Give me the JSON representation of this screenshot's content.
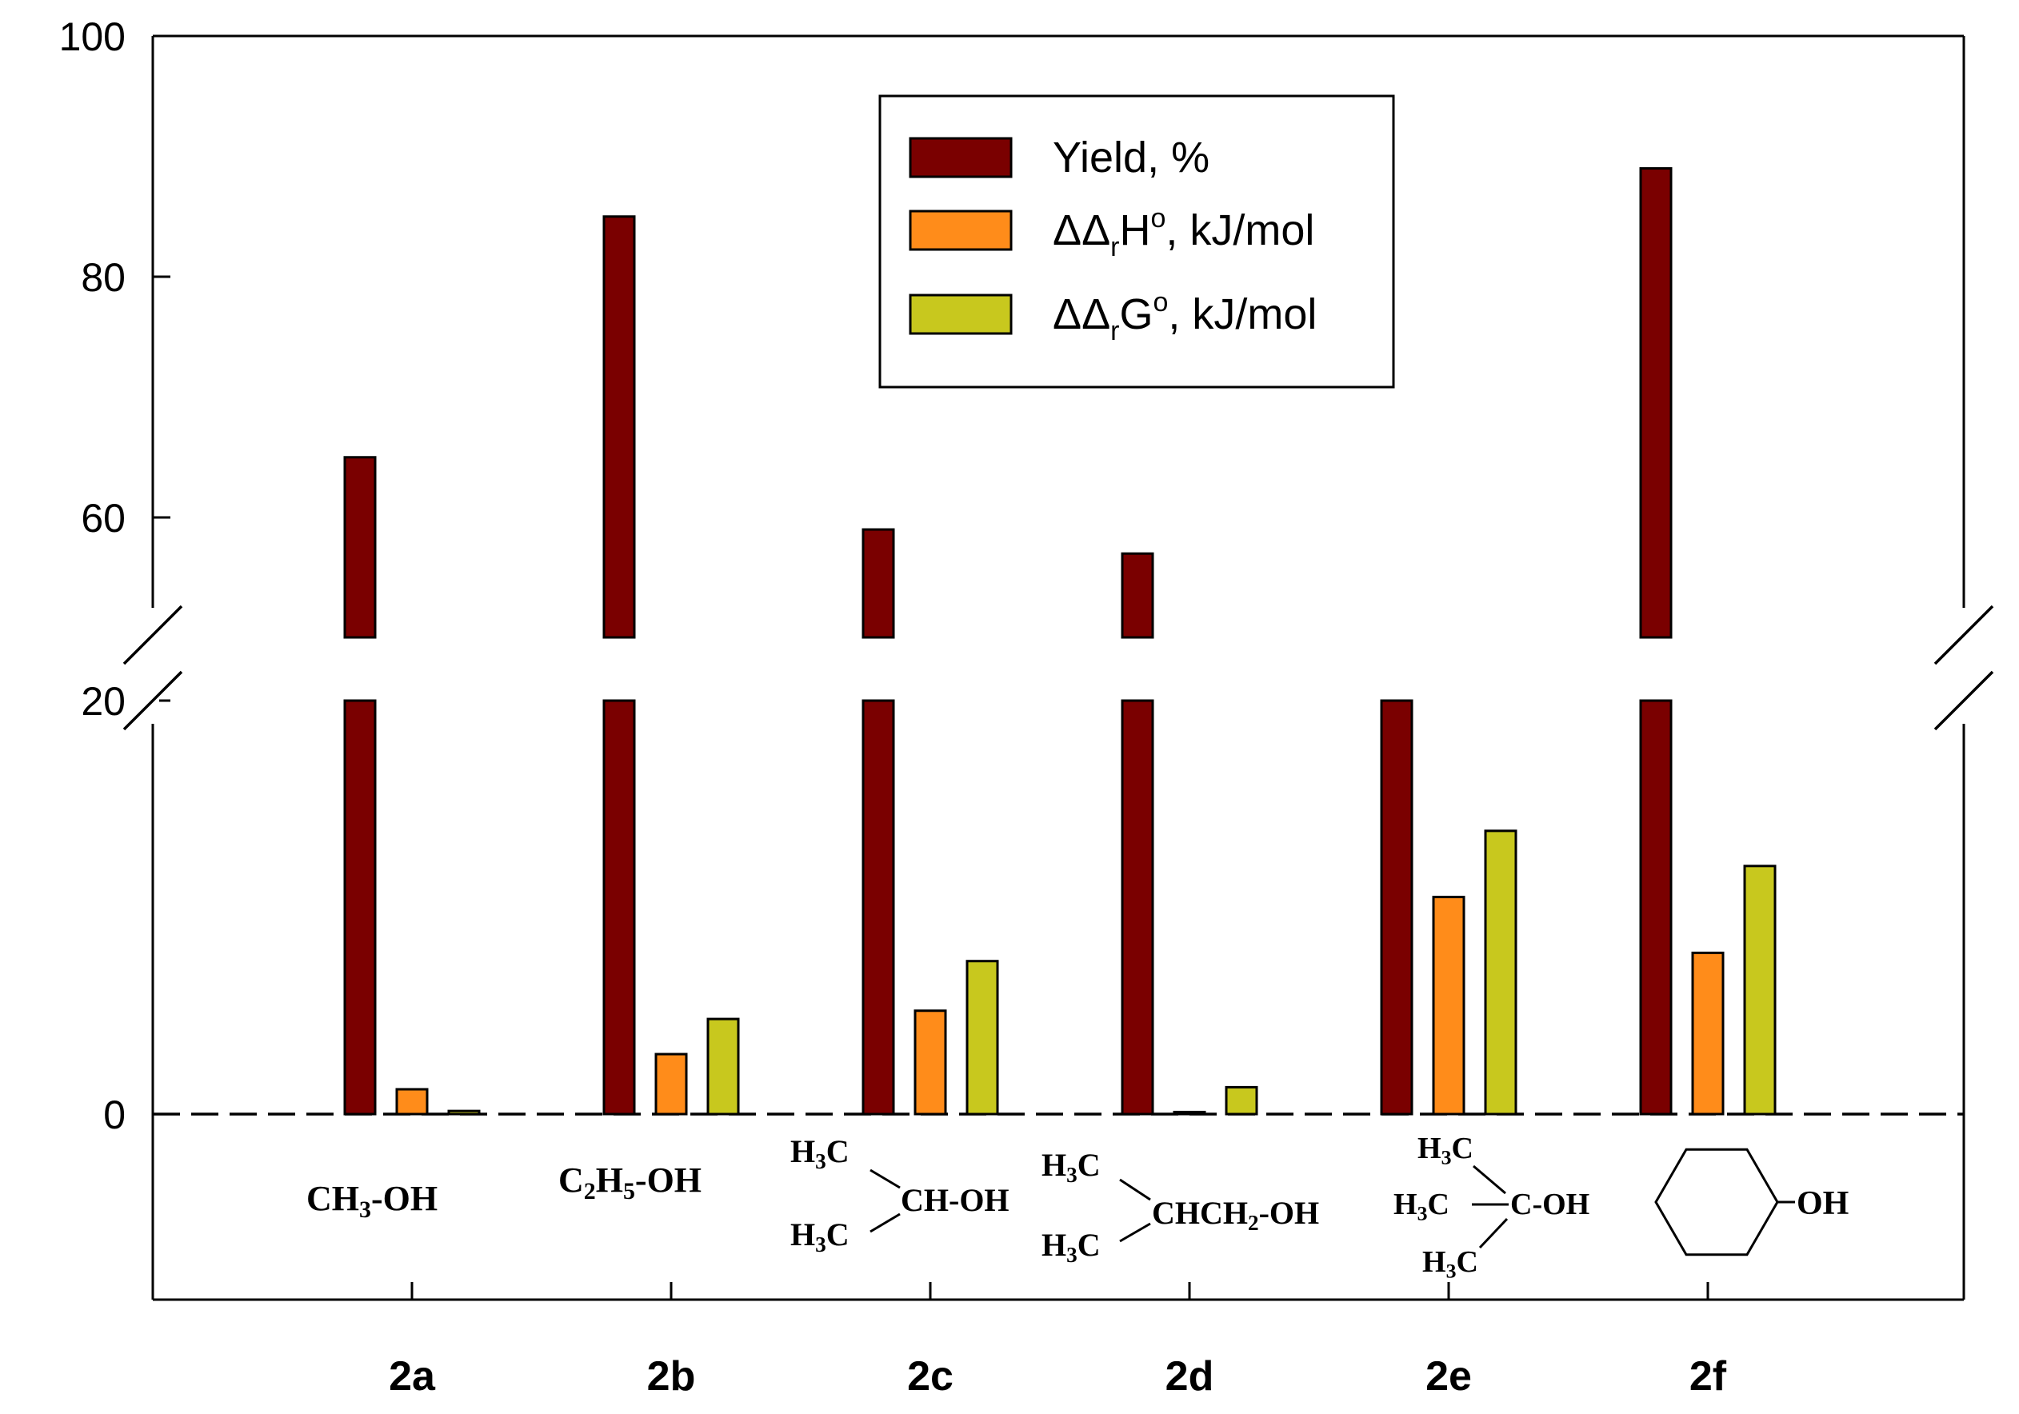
{
  "chart_data": {
    "type": "bar",
    "categories": [
      "2a",
      "2b",
      "2c",
      "2d",
      "2e",
      "2f"
    ],
    "series": [
      {
        "name": "Yield, %",
        "color": "#7a0000",
        "values": [
          65,
          85,
          59,
          57,
          20,
          89
        ]
      },
      {
        "name": "ΔΔrH°, kJ/mol",
        "color": "#ff8c1a",
        "values": [
          1.2,
          2.9,
          5.0,
          0.1,
          10.5,
          7.8
        ]
      },
      {
        "name": "ΔΔrG°, kJ/mol",
        "color": "#c8c81e",
        "values": [
          0.15,
          4.6,
          7.4,
          1.3,
          13.7,
          12.0
        ]
      }
    ],
    "y_axis": {
      "broken": true,
      "lower_range": [
        0,
        20
      ],
      "upper_range": [
        55,
        100
      ],
      "ticks": [
        0,
        20,
        60,
        80,
        100
      ]
    },
    "baseline_line": {
      "value": 0,
      "style": "dashed"
    },
    "legend": {
      "placement": "top-center"
    },
    "x_structure_labels": [
      "CH3-OH",
      "C2H5-OH",
      "(CH3)2CH-OH",
      "(CH3)2CHCH2-OH",
      "(CH3)3C-OH",
      "cyclohexyl-OH"
    ]
  }
}
